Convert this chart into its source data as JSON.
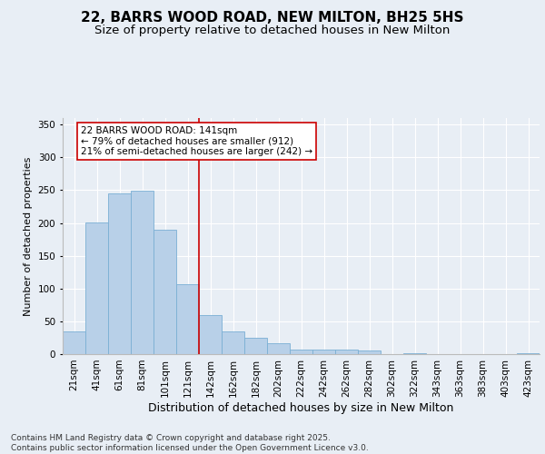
{
  "title1": "22, BARRS WOOD ROAD, NEW MILTON, BH25 5HS",
  "title2": "Size of property relative to detached houses in New Milton",
  "xlabel": "Distribution of detached houses by size in New Milton",
  "ylabel": "Number of detached properties",
  "footnote": "Contains HM Land Registry data © Crown copyright and database right 2025.\nContains public sector information licensed under the Open Government Licence v3.0.",
  "bin_labels": [
    "21sqm",
    "41sqm",
    "61sqm",
    "81sqm",
    "101sqm",
    "121sqm",
    "142sqm",
    "162sqm",
    "182sqm",
    "202sqm",
    "222sqm",
    "242sqm",
    "262sqm",
    "282sqm",
    "302sqm",
    "322sqm",
    "343sqm",
    "363sqm",
    "383sqm",
    "403sqm",
    "423sqm"
  ],
  "bar_values": [
    34,
    201,
    245,
    249,
    190,
    107,
    60,
    34,
    25,
    16,
    7,
    7,
    7,
    5,
    0,
    1,
    0,
    0,
    0,
    0,
    1
  ],
  "bar_color": "#b8d0e8",
  "bar_edgecolor": "#7aafd4",
  "vline_x": 6.0,
  "annotation_text": "22 BARRS WOOD ROAD: 141sqm\n← 79% of detached houses are smaller (912)\n21% of semi-detached houses are larger (242) →",
  "annotation_box_color": "white",
  "annotation_box_edgecolor": "#cc0000",
  "vline_color": "#cc0000",
  "ylim": [
    0,
    360
  ],
  "yticks": [
    0,
    50,
    100,
    150,
    200,
    250,
    300,
    350
  ],
  "background_color": "#e8eef5",
  "grid_color": "#ffffff",
  "title1_fontsize": 11,
  "title2_fontsize": 9.5,
  "xlabel_fontsize": 9,
  "ylabel_fontsize": 8,
  "tick_fontsize": 7.5,
  "annotation_fontsize": 7.5,
  "footnote_fontsize": 6.5
}
